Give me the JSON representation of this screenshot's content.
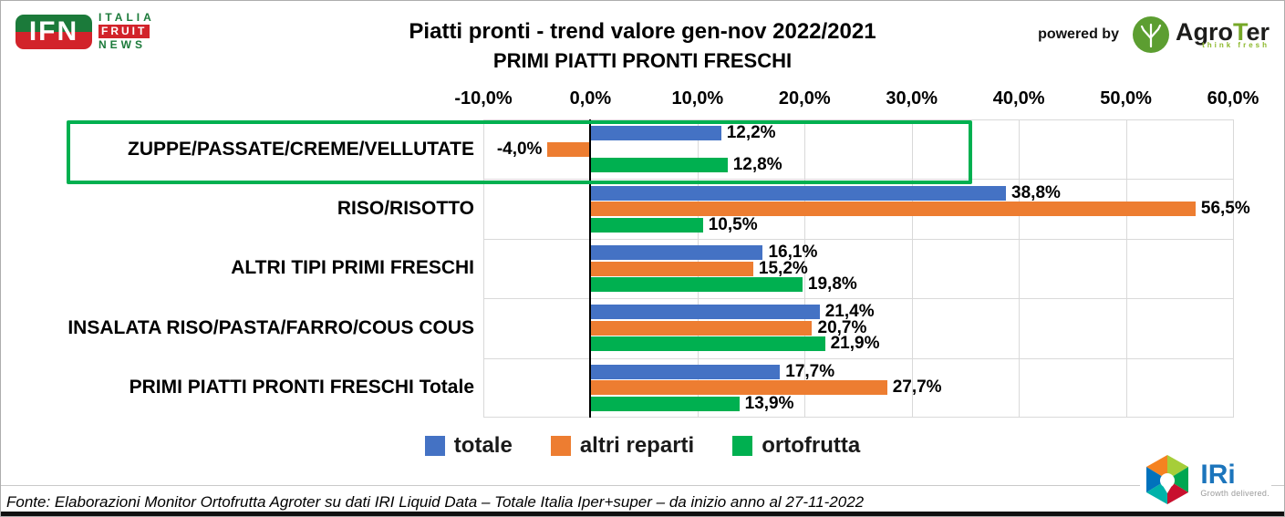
{
  "header": {
    "ifn_logo": {
      "badge": "IFN",
      "line1": "ITALIA",
      "line2": "FRUIT",
      "line3": "NEWS"
    },
    "title": "Piatti pronti - trend valore gen-nov 2022/2021",
    "subtitle": "PRIMI PIATTI PRONTI FRESCHI",
    "powered_by": "powered by",
    "agroter": {
      "name_pre": "Agro",
      "name_t": "T",
      "name_post": "er",
      "tagline": "think fresh"
    }
  },
  "chart_data": {
    "type": "bar",
    "orientation": "horizontal",
    "title": "Piatti pronti - trend valore gen-nov 2022/2021",
    "subtitle": "PRIMI PIATTI PRONTI FRESCHI",
    "categories": [
      "ZUPPE/PASSATE/CREME/VELLUTATE",
      "RISO/RISOTTO",
      "ALTRI TIPI PRIMI FRESCHI",
      "INSALATA RISO/PASTA/FARRO/COUS COUS",
      "PRIMI PIATTI PRONTI FRESCHI Totale"
    ],
    "series": [
      {
        "name": "totale",
        "color": "#4472C4",
        "values": [
          12.2,
          38.8,
          16.1,
          21.4,
          17.7
        ],
        "labels": [
          "12,2%",
          "38,8%",
          "16,1%",
          "21,4%",
          "17,7%"
        ]
      },
      {
        "name": "altri reparti",
        "color": "#ED7D31",
        "values": [
          -4.0,
          56.5,
          15.2,
          20.7,
          27.7
        ],
        "labels": [
          "-4,0%",
          "56,5%",
          "15,2%",
          "20,7%",
          "27,7%"
        ]
      },
      {
        "name": "ortofrutta",
        "color": "#00B050",
        "values": [
          12.8,
          10.5,
          19.8,
          21.9,
          13.9
        ],
        "labels": [
          "12,8%",
          "10,5%",
          "19,8%",
          "21,9%",
          "13,9%"
        ]
      }
    ],
    "x_axis": {
      "min": -10,
      "max": 60,
      "tick_step": 10,
      "tick_labels": [
        "-10,0%",
        "0,0%",
        "10,0%",
        "20,0%",
        "30,0%",
        "40,0%",
        "50,0%",
        "60,0%"
      ]
    },
    "grid": true,
    "legend_position": "bottom",
    "highlighted_category": 0,
    "highlight_color": "#00B050"
  },
  "footer": {
    "source": "Fonte: Elaborazioni Monitor Ortofrutta Agroter su dati IRI Liquid Data – Totale Italia Iper+super –  da inizio anno al 27-11-2022",
    "iri": {
      "name": "IRi",
      "tagline": "Growth delivered."
    }
  }
}
